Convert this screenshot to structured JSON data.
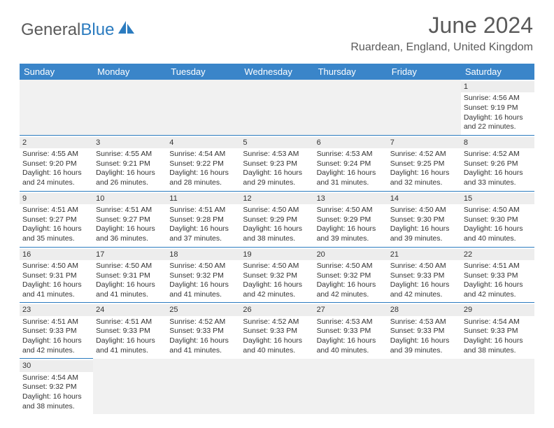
{
  "brand": {
    "part1": "General",
    "part2": "Blue"
  },
  "title": "June 2024",
  "location": "Ruardean, England, United Kingdom",
  "colors": {
    "headerBg": "#3a85c9",
    "accent": "#2b7bbf",
    "dayBg": "#ededed"
  },
  "weekdays": [
    "Sunday",
    "Monday",
    "Tuesday",
    "Wednesday",
    "Thursday",
    "Friday",
    "Saturday"
  ],
  "weeks": [
    [
      null,
      null,
      null,
      null,
      null,
      null,
      {
        "n": "1",
        "sr": "4:56 AM",
        "ss": "9:19 PM",
        "dl": "16 hours and 22 minutes."
      }
    ],
    [
      {
        "n": "2",
        "sr": "4:55 AM",
        "ss": "9:20 PM",
        "dl": "16 hours and 24 minutes."
      },
      {
        "n": "3",
        "sr": "4:55 AM",
        "ss": "9:21 PM",
        "dl": "16 hours and 26 minutes."
      },
      {
        "n": "4",
        "sr": "4:54 AM",
        "ss": "9:22 PM",
        "dl": "16 hours and 28 minutes."
      },
      {
        "n": "5",
        "sr": "4:53 AM",
        "ss": "9:23 PM",
        "dl": "16 hours and 29 minutes."
      },
      {
        "n": "6",
        "sr": "4:53 AM",
        "ss": "9:24 PM",
        "dl": "16 hours and 31 minutes."
      },
      {
        "n": "7",
        "sr": "4:52 AM",
        "ss": "9:25 PM",
        "dl": "16 hours and 32 minutes."
      },
      {
        "n": "8",
        "sr": "4:52 AM",
        "ss": "9:26 PM",
        "dl": "16 hours and 33 minutes."
      }
    ],
    [
      {
        "n": "9",
        "sr": "4:51 AM",
        "ss": "9:27 PM",
        "dl": "16 hours and 35 minutes."
      },
      {
        "n": "10",
        "sr": "4:51 AM",
        "ss": "9:27 PM",
        "dl": "16 hours and 36 minutes."
      },
      {
        "n": "11",
        "sr": "4:51 AM",
        "ss": "9:28 PM",
        "dl": "16 hours and 37 minutes."
      },
      {
        "n": "12",
        "sr": "4:50 AM",
        "ss": "9:29 PM",
        "dl": "16 hours and 38 minutes."
      },
      {
        "n": "13",
        "sr": "4:50 AM",
        "ss": "9:29 PM",
        "dl": "16 hours and 39 minutes."
      },
      {
        "n": "14",
        "sr": "4:50 AM",
        "ss": "9:30 PM",
        "dl": "16 hours and 39 minutes."
      },
      {
        "n": "15",
        "sr": "4:50 AM",
        "ss": "9:30 PM",
        "dl": "16 hours and 40 minutes."
      }
    ],
    [
      {
        "n": "16",
        "sr": "4:50 AM",
        "ss": "9:31 PM",
        "dl": "16 hours and 41 minutes."
      },
      {
        "n": "17",
        "sr": "4:50 AM",
        "ss": "9:31 PM",
        "dl": "16 hours and 41 minutes."
      },
      {
        "n": "18",
        "sr": "4:50 AM",
        "ss": "9:32 PM",
        "dl": "16 hours and 41 minutes."
      },
      {
        "n": "19",
        "sr": "4:50 AM",
        "ss": "9:32 PM",
        "dl": "16 hours and 42 minutes."
      },
      {
        "n": "20",
        "sr": "4:50 AM",
        "ss": "9:32 PM",
        "dl": "16 hours and 42 minutes."
      },
      {
        "n": "21",
        "sr": "4:50 AM",
        "ss": "9:33 PM",
        "dl": "16 hours and 42 minutes."
      },
      {
        "n": "22",
        "sr": "4:51 AM",
        "ss": "9:33 PM",
        "dl": "16 hours and 42 minutes."
      }
    ],
    [
      {
        "n": "23",
        "sr": "4:51 AM",
        "ss": "9:33 PM",
        "dl": "16 hours and 42 minutes."
      },
      {
        "n": "24",
        "sr": "4:51 AM",
        "ss": "9:33 PM",
        "dl": "16 hours and 41 minutes."
      },
      {
        "n": "25",
        "sr": "4:52 AM",
        "ss": "9:33 PM",
        "dl": "16 hours and 41 minutes."
      },
      {
        "n": "26",
        "sr": "4:52 AM",
        "ss": "9:33 PM",
        "dl": "16 hours and 40 minutes."
      },
      {
        "n": "27",
        "sr": "4:53 AM",
        "ss": "9:33 PM",
        "dl": "16 hours and 40 minutes."
      },
      {
        "n": "28",
        "sr": "4:53 AM",
        "ss": "9:33 PM",
        "dl": "16 hours and 39 minutes."
      },
      {
        "n": "29",
        "sr": "4:54 AM",
        "ss": "9:33 PM",
        "dl": "16 hours and 38 minutes."
      }
    ],
    [
      {
        "n": "30",
        "sr": "4:54 AM",
        "ss": "9:32 PM",
        "dl": "16 hours and 38 minutes."
      },
      null,
      null,
      null,
      null,
      null,
      null
    ]
  ],
  "labels": {
    "sunrise": "Sunrise: ",
    "sunset": "Sunset: ",
    "daylight": "Daylight: "
  }
}
